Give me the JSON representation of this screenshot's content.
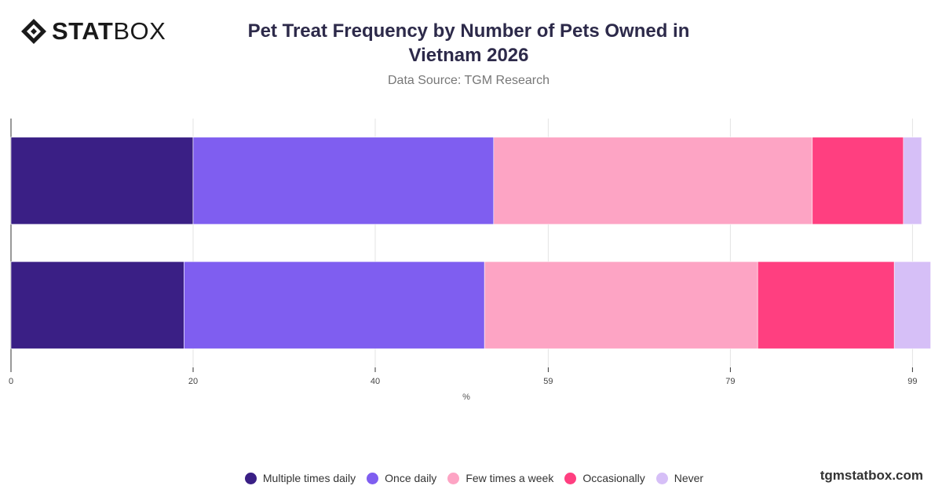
{
  "brand": {
    "name_bold": "STAT",
    "name_light": "BOX",
    "logo_icon": "diamond-logo-icon"
  },
  "header": {
    "title": "Pet Treat Frequency by Number of Pets Owned in Vietnam 2026",
    "subtitle": "Data Source: TGM Research"
  },
  "watermark": "tgmstatbox.com",
  "chart_data": {
    "type": "bar",
    "orientation": "horizontal",
    "stacked": true,
    "categories": [
      "",
      ""
    ],
    "xlabel": "%",
    "xlim": [
      0,
      100
    ],
    "x_ticks": [
      0,
      20,
      40,
      59,
      79,
      99
    ],
    "grid": true,
    "legend_position": "bottom",
    "series": [
      {
        "name": "Multiple times daily",
        "color": "#3a1f85",
        "values": [
          20,
          19
        ]
      },
      {
        "name": "Once daily",
        "color": "#7f5ef0",
        "values": [
          33,
          33
        ]
      },
      {
        "name": "Few times a week",
        "color": "#fda4c4",
        "values": [
          35,
          30
        ]
      },
      {
        "name": "Occasionally",
        "color": "#ff3f80",
        "values": [
          10,
          15
        ]
      },
      {
        "name": "Never",
        "color": "#d6bff7",
        "values": [
          2,
          4
        ]
      }
    ]
  }
}
